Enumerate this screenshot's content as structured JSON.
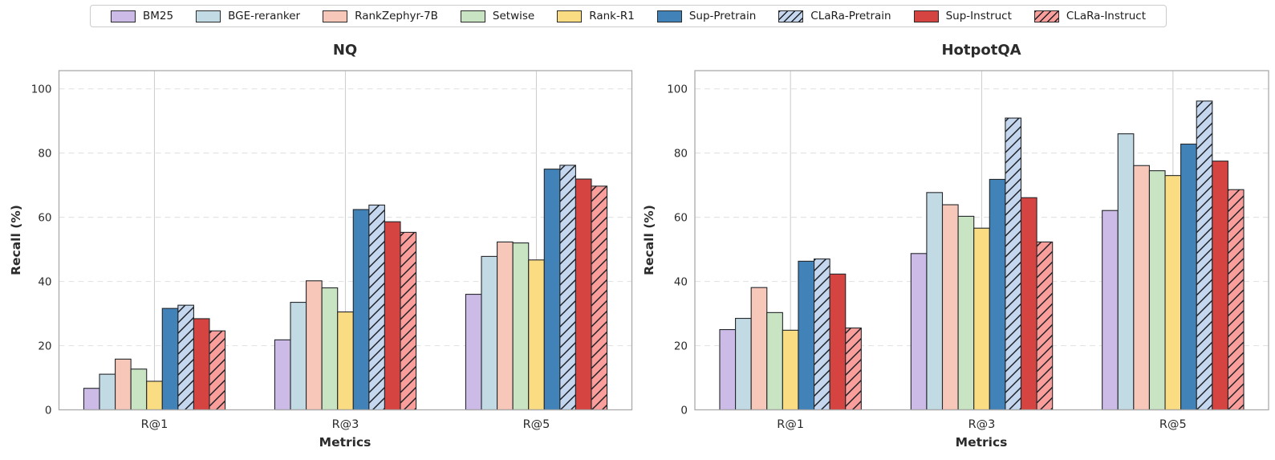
{
  "legend": {
    "items": [
      {
        "label": "BM25",
        "color": "#ccbbe7",
        "hatch": false
      },
      {
        "label": "BGE-reranker",
        "color": "#c2dae4",
        "hatch": false
      },
      {
        "label": "RankZephyr-7B",
        "color": "#f7c7b9",
        "hatch": false
      },
      {
        "label": "Setwise",
        "color": "#c8e4c2",
        "hatch": false
      },
      {
        "label": "Rank-R1",
        "color": "#fadc82",
        "hatch": false
      },
      {
        "label": "Sup-Pretrain",
        "color": "#4183b9",
        "hatch": false
      },
      {
        "label": "CLaRa-Pretrain",
        "color": "#c4d7ef",
        "hatch": true
      },
      {
        "label": "Sup-Instruct",
        "color": "#d64441",
        "hatch": false
      },
      {
        "label": "CLaRa-Instruct",
        "color": "#fa9e9c",
        "hatch": true
      }
    ]
  },
  "chart_data": [
    {
      "type": "bar",
      "title": "NQ",
      "xlabel": "Metrics",
      "ylabel": "Recall (%)",
      "categories": [
        "R@1",
        "R@3",
        "R@5"
      ],
      "yticks": [
        0,
        20,
        40,
        60,
        80,
        100
      ],
      "ylim": [
        0,
        105.7
      ],
      "grid": {
        "horizontal": "dashed",
        "vertical": "solid"
      },
      "legend_position": "top-center-shared",
      "series": [
        {
          "name": "BM25",
          "values": [
            6.7,
            21.8,
            36.0
          ]
        },
        {
          "name": "BGE-reranker",
          "values": [
            11.1,
            33.5,
            47.8
          ]
        },
        {
          "name": "RankZephyr-7B",
          "values": [
            15.8,
            40.2,
            52.3
          ]
        },
        {
          "name": "Setwise",
          "values": [
            12.7,
            38.0,
            52.0
          ]
        },
        {
          "name": "Rank-R1",
          "values": [
            8.9,
            30.5,
            46.7
          ]
        },
        {
          "name": "Sup-Pretrain",
          "values": [
            31.6,
            62.4,
            75.0
          ]
        },
        {
          "name": "CLaRa-Pretrain",
          "values": [
            32.6,
            63.8,
            76.2
          ]
        },
        {
          "name": "Sup-Instruct",
          "values": [
            28.4,
            58.6,
            71.9
          ]
        },
        {
          "name": "CLaRa-Instruct",
          "values": [
            24.6,
            55.3,
            69.7
          ]
        }
      ]
    },
    {
      "type": "bar",
      "title": "HotpotQA",
      "xlabel": "Metrics",
      "ylabel": "Recall (%)",
      "categories": [
        "R@1",
        "R@3",
        "R@5"
      ],
      "yticks": [
        0,
        20,
        40,
        60,
        80,
        100
      ],
      "ylim": [
        0,
        105.7
      ],
      "grid": {
        "horizontal": "dashed",
        "vertical": "solid"
      },
      "legend_position": "top-center-shared",
      "series": [
        {
          "name": "BM25",
          "values": [
            25.0,
            48.7,
            62.1
          ]
        },
        {
          "name": "BGE-reranker",
          "values": [
            28.5,
            67.7,
            86.0
          ]
        },
        {
          "name": "RankZephyr-7B",
          "values": [
            38.1,
            63.9,
            76.1
          ]
        },
        {
          "name": "Setwise",
          "values": [
            30.3,
            60.3,
            74.5
          ]
        },
        {
          "name": "Rank-R1",
          "values": [
            24.8,
            56.6,
            73.0
          ]
        },
        {
          "name": "Sup-Pretrain",
          "values": [
            46.3,
            71.8,
            82.8
          ]
        },
        {
          "name": "CLaRa-Pretrain",
          "values": [
            47.0,
            90.9,
            96.2
          ]
        },
        {
          "name": "Sup-Instruct",
          "values": [
            42.3,
            66.1,
            77.5
          ]
        },
        {
          "name": "CLaRa-Instruct",
          "values": [
            25.5,
            52.3,
            68.6
          ]
        }
      ]
    }
  ],
  "colors": {
    "bar_edge": "#24272b",
    "hatch_line": "#1d1f24",
    "grid_dashed": "#e4e4e4",
    "grid_vertical": "#cfcfcf",
    "spine": "#ababab",
    "tick_text": "#2a2a2a",
    "title_text": "#2b2b2b"
  }
}
